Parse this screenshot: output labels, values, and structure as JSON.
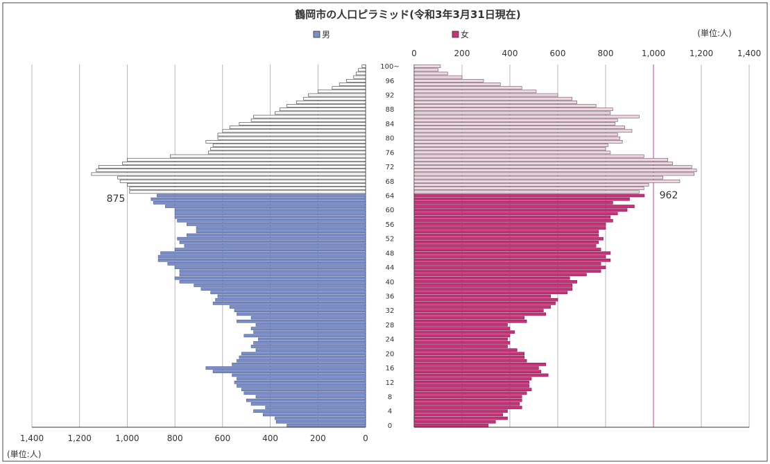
{
  "chart_data": {
    "type": "bar",
    "title": "鶴岡市の人口ピラミッド(令和3年3月31日現在)",
    "unit_label": "(単位:人)",
    "orientation": "horizontal-population-pyramid",
    "legend": [
      {
        "name": "男",
        "color": "#7b8fc6"
      },
      {
        "name": "女",
        "color": "#c8327a"
      }
    ],
    "colors": {
      "male_under65": "#7b8fc6",
      "male_65plus": "#ffffff",
      "female_under65": "#c8327a",
      "female_65plus": "#f3d5e4"
    },
    "age_tick_labels": [
      "0",
      "4",
      "8",
      "12",
      "16",
      "20",
      "24",
      "28",
      "32",
      "36",
      "40",
      "44",
      "48",
      "52",
      "56",
      "60",
      "64",
      "68",
      "72",
      "76",
      "80",
      "84",
      "88",
      "92",
      "96",
      "100~"
    ],
    "axis_tick_labels_male": [
      "1,400",
      "1,200",
      "1,000",
      "800",
      "600",
      "400",
      "200",
      "0"
    ],
    "axis_tick_labels_female": [
      "0",
      "200",
      "400",
      "600",
      "800",
      "1,000",
      "1,200",
      "1,400"
    ],
    "xlim": [
      0,
      1400
    ],
    "ages": [
      "0",
      "1",
      "2",
      "3",
      "4",
      "5",
      "6",
      "7",
      "8",
      "9",
      "10",
      "11",
      "12",
      "13",
      "14",
      "15",
      "16",
      "17",
      "18",
      "19",
      "20",
      "21",
      "22",
      "23",
      "24",
      "25",
      "26",
      "27",
      "28",
      "29",
      "30",
      "31",
      "32",
      "33",
      "34",
      "35",
      "36",
      "37",
      "38",
      "39",
      "40",
      "41",
      "42",
      "43",
      "44",
      "45",
      "46",
      "47",
      "48",
      "49",
      "50",
      "51",
      "52",
      "53",
      "54",
      "55",
      "56",
      "57",
      "58",
      "59",
      "60",
      "61",
      "62",
      "63",
      "64",
      "65",
      "66",
      "67",
      "68",
      "69",
      "70",
      "71",
      "72",
      "73",
      "74",
      "75",
      "76",
      "77",
      "78",
      "79",
      "80",
      "81",
      "82",
      "83",
      "84",
      "85",
      "86",
      "87",
      "88",
      "89",
      "90",
      "91",
      "92",
      "93",
      "94",
      "95",
      "96",
      "97",
      "98",
      "99",
      "100~"
    ],
    "series": [
      {
        "name": "男",
        "values": [
          330,
          375,
          380,
          430,
          470,
          420,
          480,
          500,
          460,
          510,
          520,
          540,
          550,
          540,
          560,
          640,
          670,
          560,
          540,
          530,
          520,
          460,
          480,
          470,
          450,
          510,
          470,
          480,
          460,
          540,
          480,
          540,
          550,
          570,
          640,
          630,
          620,
          650,
          690,
          720,
          780,
          800,
          780,
          780,
          800,
          830,
          870,
          870,
          860,
          800,
          760,
          780,
          790,
          750,
          710,
          710,
          750,
          790,
          800,
          800,
          800,
          840,
          890,
          900,
          875,
          990,
          990,
          1000,
          1030,
          1040,
          1150,
          1130,
          1120,
          1020,
          1000,
          820,
          660,
          650,
          640,
          670,
          620,
          620,
          600,
          570,
          530,
          480,
          470,
          380,
          360,
          330,
          290,
          260,
          240,
          200,
          140,
          110,
          80,
          50,
          40,
          30,
          15
        ]
      },
      {
        "name": "女",
        "values": [
          310,
          340,
          390,
          370,
          390,
          450,
          440,
          450,
          450,
          470,
          490,
          480,
          480,
          490,
          560,
          530,
          520,
          550,
          470,
          460,
          460,
          430,
          390,
          400,
          390,
          400,
          420,
          400,
          390,
          470,
          460,
          550,
          540,
          570,
          590,
          600,
          570,
          640,
          660,
          660,
          680,
          650,
          720,
          780,
          800,
          780,
          820,
          800,
          820,
          780,
          760,
          770,
          790,
          770,
          770,
          800,
          800,
          830,
          820,
          850,
          890,
          920,
          830,
          900,
          962,
          940,
          960,
          980,
          1110,
          1040,
          1170,
          1180,
          1160,
          1080,
          1060,
          960,
          820,
          800,
          810,
          870,
          860,
          850,
          910,
          880,
          840,
          850,
          940,
          820,
          830,
          760,
          680,
          660,
          600,
          510,
          450,
          360,
          290,
          200,
          140,
          100,
          110
        ]
      }
    ],
    "annotations": [
      {
        "text": "875",
        "series": "男",
        "age": "64"
      },
      {
        "text": "962",
        "series": "女",
        "age": "64"
      }
    ]
  }
}
